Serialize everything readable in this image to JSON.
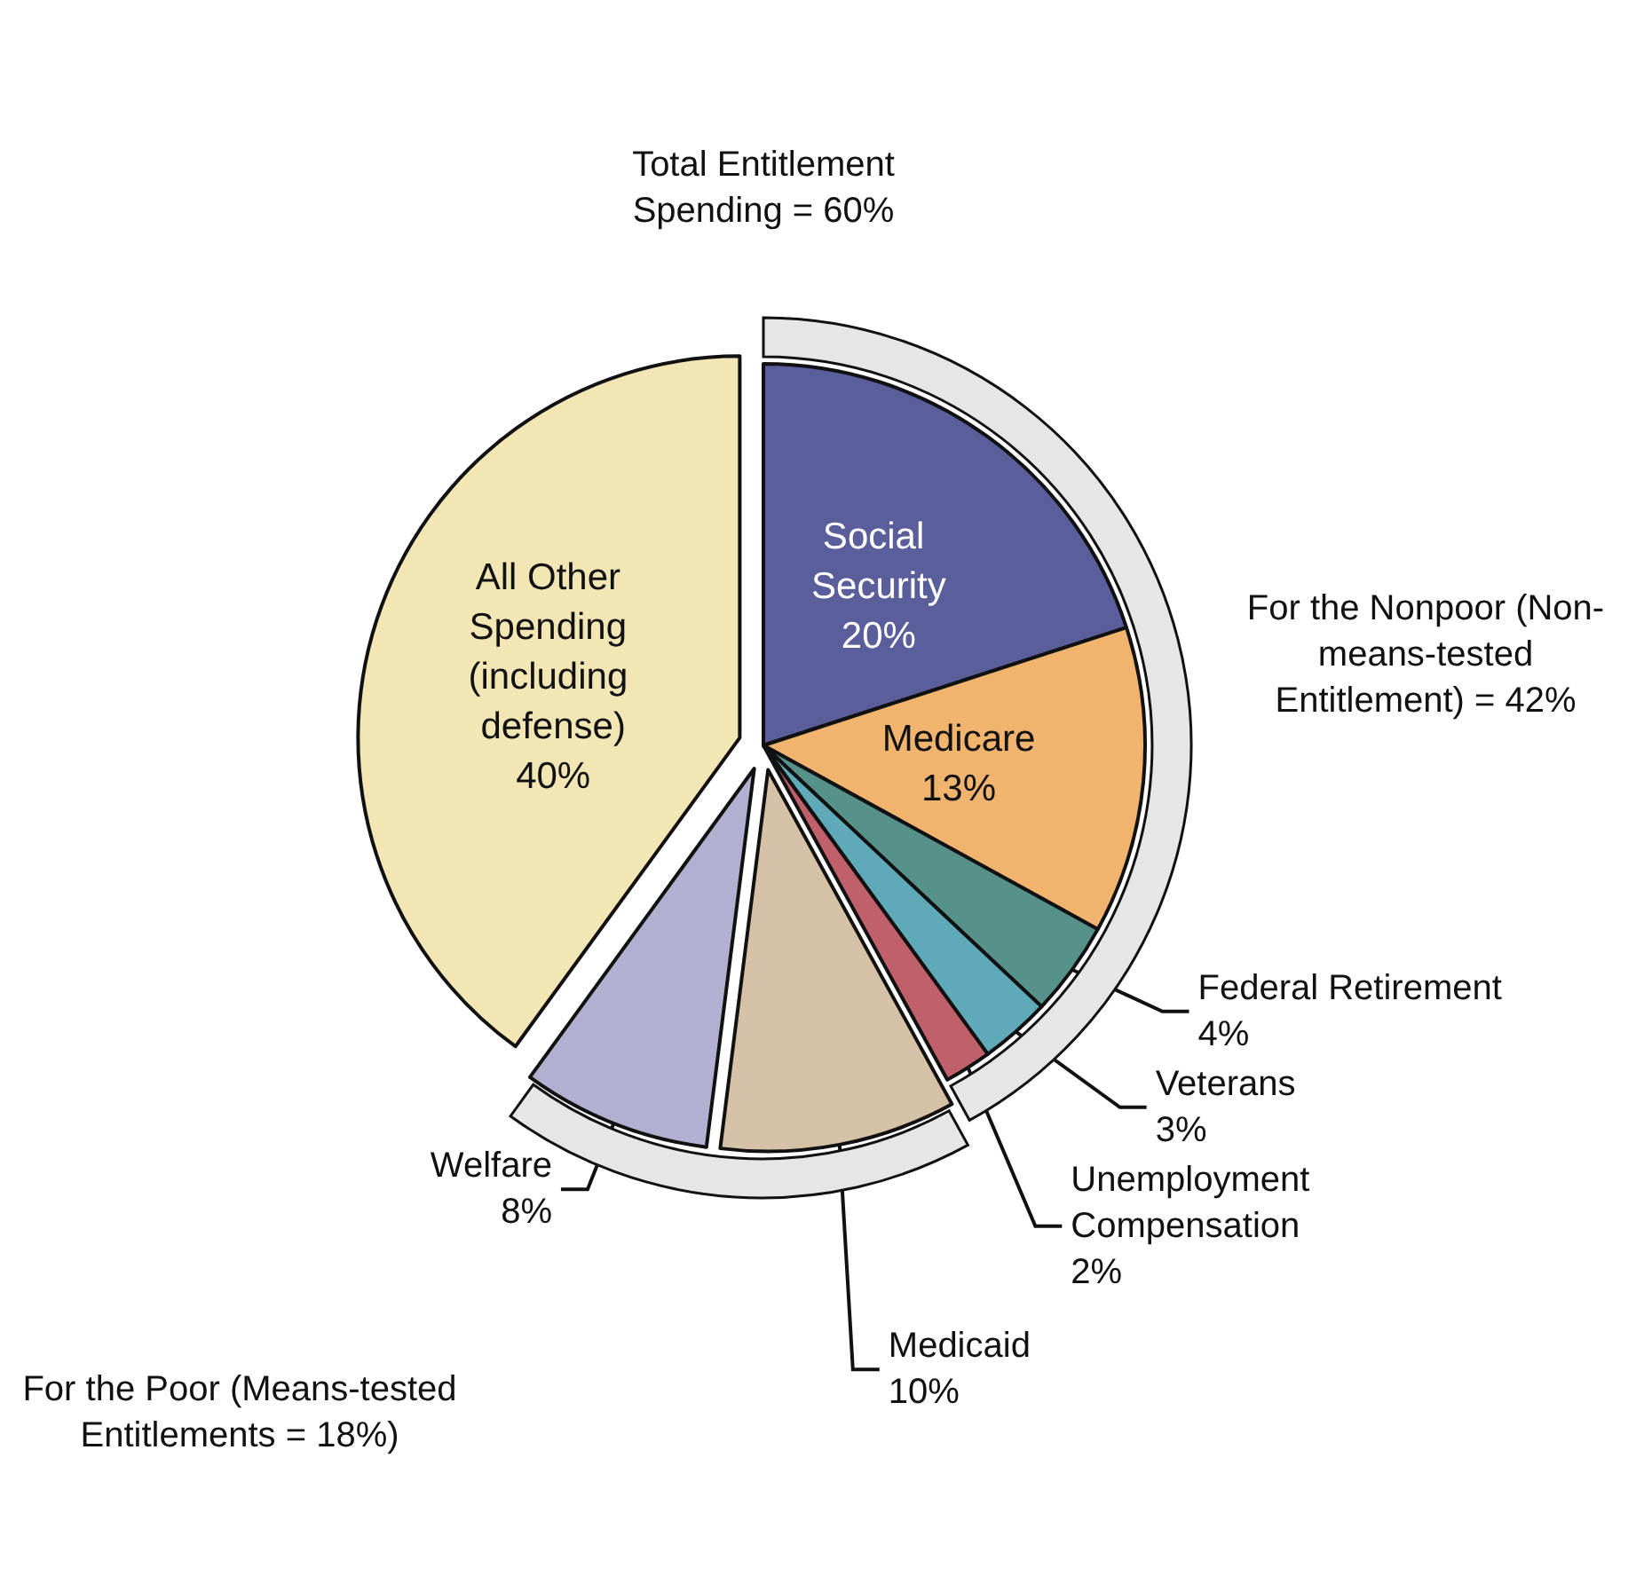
{
  "chart_data": {
    "type": "pie",
    "categories": [
      "Social Security",
      "Medicare",
      "Federal Retirement",
      "Veterans",
      "Unemployment Compensation",
      "Medicaid",
      "Welfare",
      "All Other Spending (including defense)"
    ],
    "values": [
      20,
      13,
      4,
      3,
      2,
      10,
      8,
      40
    ],
    "value_labels": [
      "20%",
      "13%",
      "4%",
      "3%",
      "2%",
      "10%",
      "8%",
      "40%"
    ],
    "colors": [
      "#5a5e9a",
      "#f0b46e",
      "#56918a",
      "#5faab9",
      "#c0606a",
      "#d5c2a6",
      "#b3afd0",
      "#f3e6b5"
    ],
    "annotations": [
      "Total Entitlement Spending = 60%",
      "For the Nonpoor (Non-means-tested Entitlement) = 42%",
      "For the Poor (Means-tested Entitlements = 18%)"
    ],
    "legend": false
  }
}
